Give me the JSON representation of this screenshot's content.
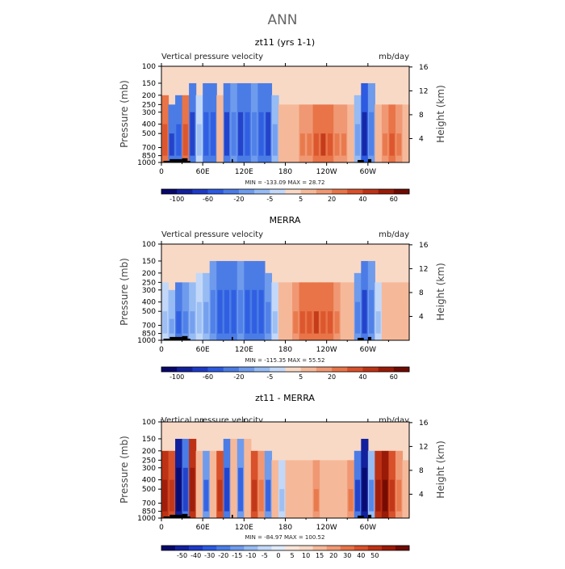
{
  "figure": {
    "title": "ANN"
  },
  "colors": {
    "seq_main": [
      "#08086a",
      "#12209c",
      "#1d3ac6",
      "#2c5ae0",
      "#4b7ce6",
      "#6f9bed",
      "#97bbf3",
      "#c3d8f8",
      "#f8d9c6",
      "#f5b99a",
      "#f09873",
      "#e87448",
      "#d9512a",
      "#bd3215",
      "#9a1a08",
      "#6e0a02"
    ],
    "seq_diff": [
      "#08086a",
      "#12209c",
      "#1d3ac6",
      "#2c5ae0",
      "#4b7ce6",
      "#6f9bed",
      "#97bbf3",
      "#c3d8f8",
      "#e0ebfb",
      "#fbe6da",
      "#f8d9c6",
      "#f5b99a",
      "#f09873",
      "#e87448",
      "#d9512a",
      "#bd3215",
      "#9a1a08",
      "#6e0a02"
    ],
    "topography": "#000000",
    "frame": "#000000"
  },
  "chart_data": [
    {
      "type": "heatmap",
      "title": "zt11 (yrs 1-1)",
      "left_label": "Vertical pressure velocity",
      "right_label": "mb/day",
      "ylabel": "Pressure (mb)",
      "ylabel_right": "Height (km)",
      "xlabel": "",
      "y_ticks": [
        100,
        150,
        200,
        250,
        300,
        400,
        500,
        700,
        850,
        1000
      ],
      "y_ticks_right": [
        4,
        8,
        12,
        16
      ],
      "x_ticks": [
        "0",
        "60E",
        "120E",
        "180",
        "120W",
        "60W"
      ],
      "stats": "MIN = -133.09   MAX =  28.72",
      "colorbar_labels": [
        "-100",
        "-60",
        "-20",
        "-5",
        "5",
        "20",
        "40",
        "60"
      ],
      "palette": "seq_main",
      "bands": [
        {
          "lon": 0,
          "top": 200,
          "value": 20
        },
        {
          "lon": 10,
          "top": 250,
          "value": -40
        },
        {
          "lon": 20,
          "top": 200,
          "value": -25
        },
        {
          "lon": 30,
          "top": 200,
          "value": 20
        },
        {
          "lon": 40,
          "top": 150,
          "value": -35
        },
        {
          "lon": 50,
          "top": 200,
          "value": -5
        },
        {
          "lon": 60,
          "top": 150,
          "value": -30
        },
        {
          "lon": 70,
          "top": 150,
          "value": -25
        },
        {
          "lon": 80,
          "top": 200,
          "value": 5
        },
        {
          "lon": 90,
          "top": 150,
          "value": -35
        },
        {
          "lon": 100,
          "top": 150,
          "value": -20
        },
        {
          "lon": 110,
          "top": 150,
          "value": -40
        },
        {
          "lon": 120,
          "top": 150,
          "value": -30
        },
        {
          "lon": 130,
          "top": 150,
          "value": -20
        },
        {
          "lon": 140,
          "top": 150,
          "value": -30
        },
        {
          "lon": 150,
          "top": 150,
          "value": -40
        },
        {
          "lon": 160,
          "top": 200,
          "value": -10
        },
        {
          "lon": 170,
          "top": 250,
          "value": 5
        },
        {
          "lon": 180,
          "top": 250,
          "value": 5
        },
        {
          "lon": 190,
          "top": 250,
          "value": 5
        },
        {
          "lon": 200,
          "top": 250,
          "value": 15
        },
        {
          "lon": 210,
          "top": 250,
          "value": 15
        },
        {
          "lon": 220,
          "top": 250,
          "value": 20
        },
        {
          "lon": 230,
          "top": 250,
          "value": 25
        },
        {
          "lon": 240,
          "top": 250,
          "value": 20
        },
        {
          "lon": 250,
          "top": 250,
          "value": 15
        },
        {
          "lon": 260,
          "top": 250,
          "value": 15
        },
        {
          "lon": 270,
          "top": 250,
          "value": 5
        },
        {
          "lon": 280,
          "top": 200,
          "value": -10
        },
        {
          "lon": 290,
          "top": 150,
          "value": -45
        },
        {
          "lon": 300,
          "top": 150,
          "value": -20
        },
        {
          "lon": 310,
          "top": 250,
          "value": 5
        },
        {
          "lon": 320,
          "top": 250,
          "value": 15
        },
        {
          "lon": 330,
          "top": 250,
          "value": 20
        },
        {
          "lon": 340,
          "top": 250,
          "value": 15
        },
        {
          "lon": 350,
          "top": 250,
          "value": 5
        }
      ]
    },
    {
      "type": "heatmap",
      "title": "MERRA",
      "left_label": "Vertical pressure velocity",
      "right_label": "mb/day",
      "ylabel": "Pressure (mb)",
      "ylabel_right": "Height (km)",
      "xlabel": "",
      "y_ticks": [
        100,
        150,
        200,
        250,
        300,
        400,
        500,
        700,
        850,
        1000
      ],
      "y_ticks_right": [
        4,
        8,
        12,
        16
      ],
      "x_ticks": [
        "0",
        "60E",
        "120E",
        "180",
        "120W",
        "60W"
      ],
      "stats": "MIN = -115.35   MAX =  55.52",
      "colorbar_labels": [
        "-100",
        "-60",
        "-20",
        "-5",
        "5",
        "20",
        "40",
        "60"
      ],
      "palette": "seq_main",
      "bands": [
        {
          "lon": 0,
          "top": 250,
          "value": -5
        },
        {
          "lon": 10,
          "top": 300,
          "value": -10
        },
        {
          "lon": 20,
          "top": 250,
          "value": -25
        },
        {
          "lon": 30,
          "top": 250,
          "value": -20
        },
        {
          "lon": 40,
          "top": 250,
          "value": -10
        },
        {
          "lon": 50,
          "top": 200,
          "value": -5
        },
        {
          "lon": 60,
          "top": 200,
          "value": -10
        },
        {
          "lon": 70,
          "top": 150,
          "value": -20
        },
        {
          "lon": 80,
          "top": 150,
          "value": -25
        },
        {
          "lon": 90,
          "top": 150,
          "value": -30
        },
        {
          "lon": 100,
          "top": 150,
          "value": -25
        },
        {
          "lon": 110,
          "top": 150,
          "value": -20
        },
        {
          "lon": 120,
          "top": 150,
          "value": -25
        },
        {
          "lon": 130,
          "top": 150,
          "value": -30
        },
        {
          "lon": 140,
          "top": 150,
          "value": -25
        },
        {
          "lon": 150,
          "top": 200,
          "value": -20
        },
        {
          "lon": 160,
          "top": 250,
          "value": -5
        },
        {
          "lon": 170,
          "top": 250,
          "value": 5
        },
        {
          "lon": 180,
          "top": 250,
          "value": 5
        },
        {
          "lon": 190,
          "top": 250,
          "value": 15
        },
        {
          "lon": 200,
          "top": 250,
          "value": 20
        },
        {
          "lon": 210,
          "top": 250,
          "value": 20
        },
        {
          "lon": 220,
          "top": 250,
          "value": 25
        },
        {
          "lon": 230,
          "top": 250,
          "value": 20
        },
        {
          "lon": 240,
          "top": 250,
          "value": 20
        },
        {
          "lon": 250,
          "top": 250,
          "value": 15
        },
        {
          "lon": 260,
          "top": 250,
          "value": 5
        },
        {
          "lon": 270,
          "top": 250,
          "value": 5
        },
        {
          "lon": 280,
          "top": 200,
          "value": -20
        },
        {
          "lon": 290,
          "top": 150,
          "value": -35
        },
        {
          "lon": 300,
          "top": 150,
          "value": -20
        },
        {
          "lon": 310,
          "top": 250,
          "value": -5
        },
        {
          "lon": 320,
          "top": 250,
          "value": 5
        },
        {
          "lon": 330,
          "top": 250,
          "value": 5
        },
        {
          "lon": 340,
          "top": 250,
          "value": 5
        },
        {
          "lon": 350,
          "top": 250,
          "value": 5
        }
      ]
    },
    {
      "type": "heatmap",
      "title": "zt11 - MERRA",
      "left_label": "Vertical pressure velocity",
      "right_label": "mb/day",
      "ylabel": "Pressure (mb)",
      "ylabel_right": "Height (km)",
      "xlabel": "",
      "y_ticks": [
        100,
        150,
        200,
        250,
        300,
        400,
        500,
        700,
        850,
        1000
      ],
      "y_ticks_right": [
        4,
        8,
        12,
        16
      ],
      "x_ticks": [
        "0",
        "60E",
        "120E",
        "180",
        "120W",
        "60W"
      ],
      "stats": "MIN = -84.97   MAX = 100.52",
      "colorbar_labels": [
        "-50",
        "-40",
        "-30",
        "-20",
        "-15",
        "-10",
        "-5",
        "0",
        "5",
        "10",
        "15",
        "20",
        "30",
        "40",
        "50"
      ],
      "palette": "seq_diff",
      "bands": [
        {
          "lon": 0,
          "top": 200,
          "value": 30
        },
        {
          "lon": 10,
          "top": 200,
          "value": 20
        },
        {
          "lon": 20,
          "top": 150,
          "value": -45
        },
        {
          "lon": 30,
          "top": 150,
          "value": -20
        },
        {
          "lon": 40,
          "top": 150,
          "value": 30
        },
        {
          "lon": 50,
          "top": 200,
          "value": 5
        },
        {
          "lon": 60,
          "top": 200,
          "value": -15
        },
        {
          "lon": 70,
          "top": 200,
          "value": 5
        },
        {
          "lon": 80,
          "top": 200,
          "value": 20
        },
        {
          "lon": 90,
          "top": 150,
          "value": -20
        },
        {
          "lon": 100,
          "top": 150,
          "value": 5
        },
        {
          "lon": 110,
          "top": 150,
          "value": -15
        },
        {
          "lon": 120,
          "top": 150,
          "value": 5
        },
        {
          "lon": 130,
          "top": 200,
          "value": 20
        },
        {
          "lon": 140,
          "top": 200,
          "value": 10
        },
        {
          "lon": 150,
          "top": 200,
          "value": -15
        },
        {
          "lon": 160,
          "top": 250,
          "value": 5
        },
        {
          "lon": 170,
          "top": 250,
          "value": -5
        },
        {
          "lon": 180,
          "top": 250,
          "value": 5
        },
        {
          "lon": 190,
          "top": 250,
          "value": 5
        },
        {
          "lon": 200,
          "top": 250,
          "value": 5
        },
        {
          "lon": 210,
          "top": 250,
          "value": 5
        },
        {
          "lon": 220,
          "top": 250,
          "value": 10
        },
        {
          "lon": 230,
          "top": 250,
          "value": 5
        },
        {
          "lon": 240,
          "top": 250,
          "value": 5
        },
        {
          "lon": 250,
          "top": 250,
          "value": 5
        },
        {
          "lon": 260,
          "top": 250,
          "value": 5
        },
        {
          "lon": 270,
          "top": 250,
          "value": 10
        },
        {
          "lon": 280,
          "top": 200,
          "value": -20
        },
        {
          "lon": 290,
          "top": 150,
          "value": -45
        },
        {
          "lon": 300,
          "top": 200,
          "value": -10
        },
        {
          "lon": 310,
          "top": 200,
          "value": 30
        },
        {
          "lon": 320,
          "top": 200,
          "value": 40
        },
        {
          "lon": 330,
          "top": 200,
          "value": 20
        },
        {
          "lon": 340,
          "top": 200,
          "value": 10
        },
        {
          "lon": 350,
          "top": 250,
          "value": 5
        }
      ]
    }
  ]
}
